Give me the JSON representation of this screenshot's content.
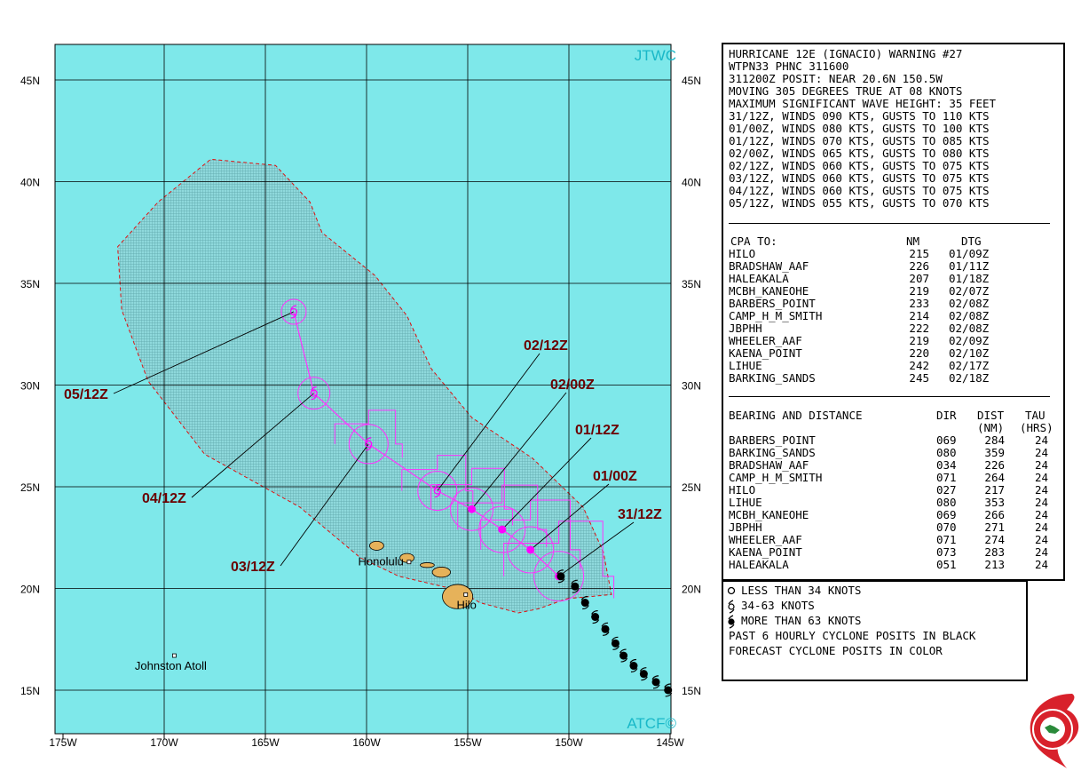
{
  "warning": {
    "lines": [
      "HURRICANE 12E (IGNACIO) WARNING #27",
      "WTPN33 PHNC 311600",
      "311200Z POSIT: NEAR 20.6N 150.5W",
      "MOVING 305 DEGREES TRUE AT 08 KNOTS",
      "MAXIMUM SIGNIFICANT WAVE HEIGHT: 35 FEET",
      "31/12Z, WINDS 090 KTS, GUSTS TO 110 KTS",
      "01/00Z, WINDS 080 KTS, GUSTS TO 100 KTS",
      "01/12Z, WINDS 070 KTS, GUSTS TO 085 KTS",
      "02/00Z, WINDS 065 KTS, GUSTS TO 080 KTS",
      "02/12Z, WINDS 060 KTS, GUSTS TO 075 KTS",
      "03/12Z, WINDS 060 KTS, GUSTS TO 075 KTS",
      "04/12Z, WINDS 060 KTS, GUSTS TO 075 KTS",
      "05/12Z, WINDS 055 KTS, GUSTS TO 070 KTS"
    ]
  },
  "cpa": {
    "header": {
      "name": "CPA TO:",
      "nm": "NM",
      "dtg": "DTG"
    },
    "rows": [
      {
        "name": "HILO",
        "nm": "215",
        "dtg": "01/09Z"
      },
      {
        "name": "BRADSHAW_AAF",
        "nm": "226",
        "dtg": "01/11Z"
      },
      {
        "name": "HALEAKALA",
        "nm": "207",
        "dtg": "01/18Z"
      },
      {
        "name": "MCBH_KANEOHE",
        "nm": "219",
        "dtg": "02/07Z"
      },
      {
        "name": "BARBERS_POINT",
        "nm": "233",
        "dtg": "02/08Z"
      },
      {
        "name": "CAMP_H_M_SMITH",
        "nm": "214",
        "dtg": "02/08Z"
      },
      {
        "name": "JBPHH",
        "nm": "222",
        "dtg": "02/08Z"
      },
      {
        "name": "WHEELER_AAF",
        "nm": "219",
        "dtg": "02/09Z"
      },
      {
        "name": "KAENA_POINT",
        "nm": "220",
        "dtg": "02/10Z"
      },
      {
        "name": "LIHUE",
        "nm": "242",
        "dtg": "02/17Z"
      },
      {
        "name": "BARKING_SANDS",
        "nm": "245",
        "dtg": "02/18Z"
      }
    ]
  },
  "bearing": {
    "header": {
      "name": "BEARING AND DISTANCE",
      "dir": "DIR",
      "dist": "DIST",
      "tau": "TAU",
      "dist2": "(NM)",
      "tau2": "(HRS)"
    },
    "rows": [
      {
        "name": "BARBERS_POINT",
        "dir": "069",
        "dist": "284",
        "tau": "24"
      },
      {
        "name": "BARKING_SANDS",
        "dir": "080",
        "dist": "359",
        "tau": "24"
      },
      {
        "name": "BRADSHAW_AAF",
        "dir": "034",
        "dist": "226",
        "tau": "24"
      },
      {
        "name": "CAMP_H_M_SMITH",
        "dir": "071",
        "dist": "264",
        "tau": "24"
      },
      {
        "name": "HILO",
        "dir": "027",
        "dist": "217",
        "tau": "24"
      },
      {
        "name": "LIHUE",
        "dir": "080",
        "dist": "353",
        "tau": "24"
      },
      {
        "name": "MCBH_KANEOHE",
        "dir": "069",
        "dist": "266",
        "tau": "24"
      },
      {
        "name": "JBPHH",
        "dir": "070",
        "dist": "271",
        "tau": "24"
      },
      {
        "name": "WHEELER_AAF",
        "dir": "071",
        "dist": "274",
        "tau": "24"
      },
      {
        "name": "KAENA_POINT",
        "dir": "073",
        "dist": "283",
        "tau": "24"
      },
      {
        "name": "HALEAKALA",
        "dir": "051",
        "dist": "213",
        "tau": "24"
      }
    ]
  },
  "legend": {
    "items": [
      "LESS THAN 34 KNOTS",
      "34-63 KNOTS",
      "MORE THAN 63 KNOTS"
    ],
    "notes": [
      "PAST 6 HOURLY CYCLONE POSITS IN BLACK",
      "FORECAST CYCLONE POSITS IN COLOR"
    ]
  },
  "map": {
    "corner_labels": {
      "top_right": "JTWC",
      "bottom_right": "ATCF©"
    },
    "lon_labels": [
      "175W",
      "170W",
      "165W",
      "160W",
      "155W",
      "150W",
      "145W"
    ],
    "lat_labels": [
      "45N",
      "40N",
      "35N",
      "30N",
      "25N",
      "20N",
      "15N"
    ],
    "places": [
      {
        "name": "Honolulu",
        "lon": -157.9,
        "lat": 21.3
      },
      {
        "name": "Hilo",
        "lon": -155.1,
        "lat": 19.7
      },
      {
        "name": "Johnston Atoll",
        "lon": -169.5,
        "lat": 16.7
      }
    ],
    "forecast": [
      {
        "label": "31/12Z",
        "lon": -150.5,
        "lat": 20.6,
        "wind": 90
      },
      {
        "label": "01/00Z",
        "lon": -151.9,
        "lat": 21.9,
        "wind": 80
      },
      {
        "label": "01/12Z",
        "lon": -153.3,
        "lat": 22.9,
        "wind": 70
      },
      {
        "label": "02/00Z",
        "lon": -154.8,
        "lat": 23.9,
        "wind": 65
      },
      {
        "label": "02/12Z",
        "lon": -156.5,
        "lat": 24.8,
        "wind": 60
      },
      {
        "label": "03/12Z",
        "lon": -159.9,
        "lat": 27.1,
        "wind": 60
      },
      {
        "label": "04/12Z",
        "lon": -162.6,
        "lat": 29.6,
        "wind": 60
      },
      {
        "label": "05/12Z",
        "lon": -163.6,
        "lat": 33.6,
        "wind": 55
      }
    ],
    "past_track": [
      {
        "lon": -145.1,
        "lat": 15.0
      },
      {
        "lon": -145.7,
        "lat": 15.4
      },
      {
        "lon": -146.3,
        "lat": 15.8
      },
      {
        "lon": -146.8,
        "lat": 16.2
      },
      {
        "lon": -147.3,
        "lat": 16.7
      },
      {
        "lon": -147.7,
        "lat": 17.3
      },
      {
        "lon": -148.2,
        "lat": 18.0
      },
      {
        "lon": -148.7,
        "lat": 18.6
      },
      {
        "lon": -149.2,
        "lat": 19.3
      },
      {
        "lon": -149.7,
        "lat": 20.1
      },
      {
        "lon": -150.4,
        "lat": 20.6
      }
    ],
    "colors": {
      "ocean": "#7ee8ea",
      "swath": "#6ab8b8",
      "track": "#ff33ff",
      "wind_marker": "#ff00ff",
      "label": "#6b0000",
      "land": "#e6b25a",
      "corner_label": "#19b8c8"
    }
  }
}
